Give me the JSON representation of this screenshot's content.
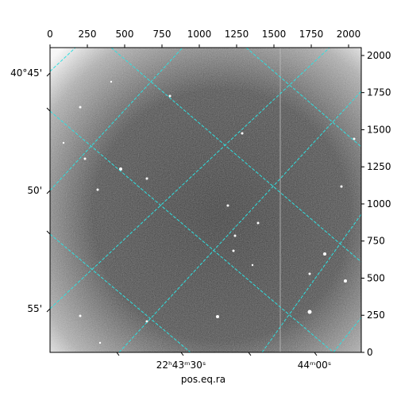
{
  "chart_data": {
    "type": "image",
    "xlabel": "pos.eq.ra",
    "xlim": [
      0,
      2085
    ],
    "xticks": [
      0,
      250,
      500,
      750,
      1000,
      1250,
      1500,
      1750,
      2000
    ],
    "ylim": [
      0,
      2053
    ],
    "yticks": [
      0,
      250,
      500,
      750,
      1000,
      1250,
      1500,
      1750,
      2000
    ],
    "world_ticks": {
      "dec": [
        "40°45'",
        "50'",
        "55'"
      ],
      "ra": [
        "22ʰ43ᵐ30ˢ",
        "44ᵐ00ˢ"
      ]
    }
  }
}
